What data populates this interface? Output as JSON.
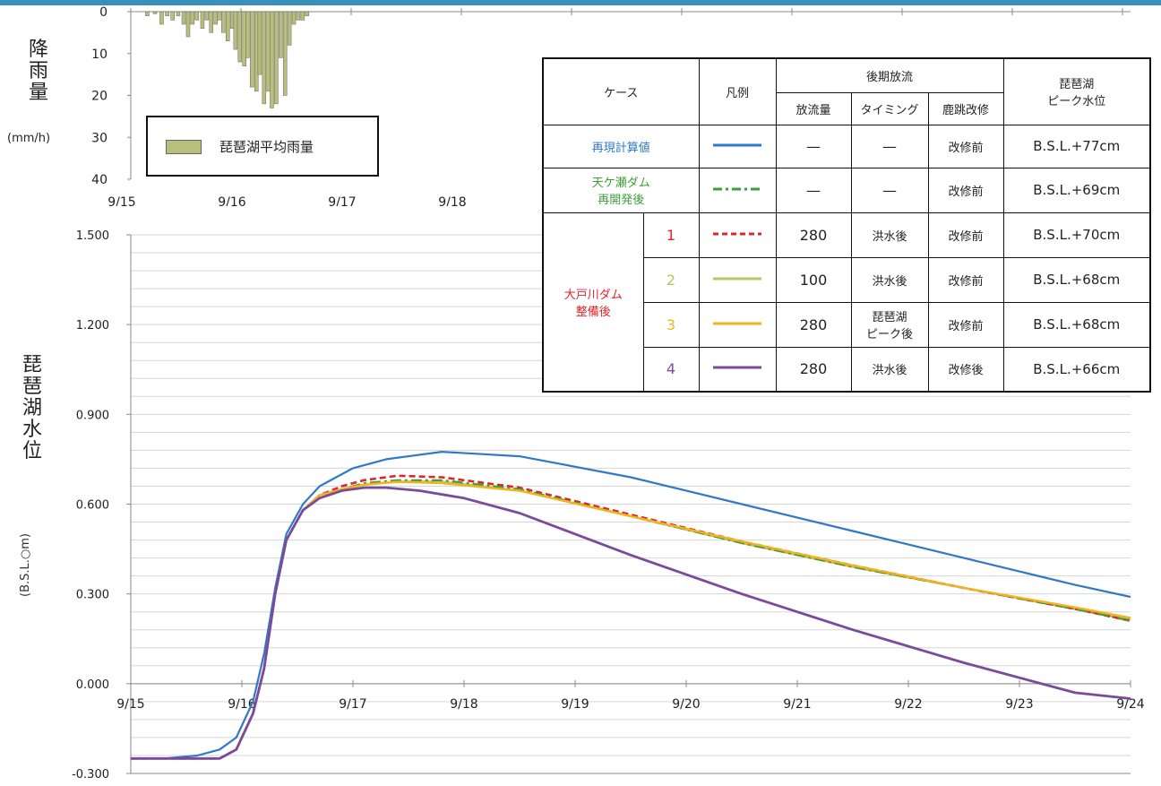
{
  "colors": {
    "recalc": "#2f79c8",
    "amagase": "#3f9d3a",
    "case1": "#e0242a",
    "case2": "#b9c463",
    "case3": "#f4b31a",
    "case4": "#7a4a9b",
    "rain": "#b9bf7a",
    "grid": "#d6d6d6",
    "accent_bar": "#3a8fb8"
  },
  "rain_chart": {
    "ylabel_chars": [
      "降",
      "雨",
      "量"
    ],
    "unit": "(mm/h)",
    "y_ticks": [
      "0",
      "10",
      "20",
      "30",
      "40"
    ],
    "x_ticks": [
      "9/15",
      "9/16",
      "9/17",
      "9/18"
    ],
    "legend_label": "琵琶湖平均雨量"
  },
  "level_chart": {
    "ylabel_chars": [
      "琵",
      "琶",
      "湖",
      "水",
      "位"
    ],
    "unit_rotated": "(B.S.L.○m)",
    "y_ticks": [
      "1.500",
      "1.200",
      "0.900",
      "0.600",
      "0.300",
      "0.000",
      "-0.300"
    ],
    "x_ticks": [
      "9/15",
      "9/16",
      "9/17",
      "9/18",
      "9/19",
      "9/20",
      "9/21",
      "9/22",
      "9/23",
      "9/24"
    ]
  },
  "legend_table": {
    "headers": {
      "case": "ケース",
      "legend": "凡例",
      "later_release": "後期放流",
      "peak": "琵琶湖\nピーク水位",
      "discharge": "放流量",
      "timing": "タイミング",
      "shishitobi": "鹿跳改修"
    },
    "group_label": "大戸川ダム\n整備後",
    "rows": [
      {
        "case": "再現計算値",
        "discharge": "—",
        "timing": "—",
        "shishitobi": "改修前",
        "peak": "B.S.L.+77cm"
      },
      {
        "case": "天ケ瀬ダム\n再開発後",
        "discharge": "—",
        "timing": "—",
        "shishitobi": "改修前",
        "peak": "B.S.L.+69cm"
      },
      {
        "case": "1",
        "discharge": "280",
        "timing": "洪水後",
        "shishitobi": "改修前",
        "peak": "B.S.L.+70cm"
      },
      {
        "case": "2",
        "discharge": "100",
        "timing": "洪水後",
        "shishitobi": "改修前",
        "peak": "B.S.L.+68cm"
      },
      {
        "case": "3",
        "discharge": "280",
        "timing": "琵琶湖\nピーク後",
        "shishitobi": "改修前",
        "peak": "B.S.L.+68cm"
      },
      {
        "case": "4",
        "discharge": "280",
        "timing": "洪水後",
        "shishitobi": "改修後",
        "peak": "B.S.L.+66cm"
      }
    ]
  },
  "chart_data": [
    {
      "type": "bar",
      "xlim": [
        0,
        4
      ],
      "ylim": [
        0,
        40
      ],
      "y_inverted": true,
      "x_ticks": [
        "9/15",
        "9/16",
        "9/17",
        "9/18"
      ],
      "series": [
        {
          "name": "琵琶湖平均雨量",
          "x": [
            0.15,
            0.22,
            0.28,
            0.33,
            0.38,
            0.43,
            0.48,
            0.52,
            0.56,
            0.6,
            0.65,
            0.69,
            0.73,
            0.77,
            0.8,
            0.84,
            0.88,
            0.92,
            0.95,
            0.99,
            1.03,
            1.06,
            1.1,
            1.14,
            1.17,
            1.21,
            1.25,
            1.28,
            1.32,
            1.36,
            1.4,
            1.44,
            1.48,
            1.52,
            1.56,
            1.6
          ],
          "values": [
            1,
            0.5,
            3,
            1,
            2,
            1,
            3,
            6,
            3,
            2,
            4,
            2,
            5,
            3,
            2,
            5,
            7,
            4,
            9,
            12,
            13,
            11,
            18,
            19,
            15,
            22,
            19,
            23,
            22,
            11,
            20,
            8,
            3,
            2,
            2,
            1
          ]
        }
      ]
    },
    {
      "type": "line",
      "x_ticks": [
        "9/15",
        "9/16",
        "9/17",
        "9/18",
        "9/19",
        "9/20",
        "9/21",
        "9/22",
        "9/23",
        "9/24"
      ],
      "xlim": [
        0,
        9
      ],
      "ylim": [
        -0.3,
        1.5
      ],
      "y_ticks": [
        -0.3,
        0.0,
        0.3,
        0.6,
        0.9,
        1.2,
        1.5
      ],
      "grid": true,
      "series": [
        {
          "name": "再現計算値",
          "color": "#2f79c8",
          "dash": "solid",
          "x": [
            0,
            0.3,
            0.6,
            0.8,
            0.95,
            1.1,
            1.2,
            1.3,
            1.4,
            1.55,
            1.7,
            1.9,
            2.0,
            2.3,
            2.8,
            3.5,
            4.5,
            5.5,
            6.5,
            7.5,
            8.5,
            9.0
          ],
          "y": [
            -0.25,
            -0.25,
            -0.24,
            -0.22,
            -0.18,
            -0.06,
            0.1,
            0.32,
            0.5,
            0.6,
            0.66,
            0.7,
            0.72,
            0.75,
            0.775,
            0.76,
            0.69,
            0.6,
            0.51,
            0.42,
            0.33,
            0.29
          ]
        },
        {
          "name": "天ケ瀬ダム再開発後",
          "color": "#3f9d3a",
          "dash": "dashdot",
          "x": [
            0,
            0.5,
            0.8,
            0.95,
            1.1,
            1.2,
            1.3,
            1.4,
            1.55,
            1.7,
            1.9,
            2.1,
            2.4,
            2.8,
            3.5,
            4.5,
            5.5,
            6.5,
            7.5,
            8.5,
            9.0
          ],
          "y": [
            -0.25,
            -0.25,
            -0.25,
            -0.22,
            -0.1,
            0.05,
            0.3,
            0.48,
            0.58,
            0.63,
            0.65,
            0.67,
            0.68,
            0.68,
            0.65,
            0.56,
            0.47,
            0.39,
            0.32,
            0.25,
            0.21
          ]
        },
        {
          "name": "1",
          "color": "#e0242a",
          "dash": "dashed",
          "x": [
            0,
            0.5,
            0.8,
            0.95,
            1.1,
            1.2,
            1.3,
            1.4,
            1.55,
            1.7,
            1.9,
            2.1,
            2.4,
            2.8,
            3.5,
            4.5,
            5.5,
            6.5,
            7.5,
            8.5,
            9.0
          ],
          "y": [
            -0.25,
            -0.25,
            -0.25,
            -0.22,
            -0.1,
            0.05,
            0.3,
            0.48,
            0.58,
            0.63,
            0.66,
            0.68,
            0.695,
            0.69,
            0.655,
            0.565,
            0.475,
            0.395,
            0.32,
            0.25,
            0.21
          ]
        },
        {
          "name": "2",
          "color": "#b9c463",
          "dash": "solid",
          "x": [
            0,
            0.5,
            0.8,
            0.95,
            1.1,
            1.2,
            1.3,
            1.4,
            1.55,
            1.7,
            1.9,
            2.1,
            2.4,
            2.8,
            3.5,
            4.5,
            5.5,
            6.5,
            7.5,
            8.5,
            9.0
          ],
          "y": [
            -0.25,
            -0.25,
            -0.25,
            -0.22,
            -0.1,
            0.05,
            0.3,
            0.48,
            0.58,
            0.63,
            0.65,
            0.665,
            0.675,
            0.675,
            0.645,
            0.56,
            0.47,
            0.39,
            0.32,
            0.25,
            0.215
          ]
        },
        {
          "name": "3",
          "color": "#f4b31a",
          "dash": "solid",
          "x": [
            0,
            0.5,
            0.8,
            0.95,
            1.1,
            1.2,
            1.3,
            1.4,
            1.55,
            1.7,
            1.9,
            2.1,
            2.4,
            2.8,
            3.5,
            4.5,
            5.5,
            6.5,
            7.5,
            8.5,
            9.0
          ],
          "y": [
            -0.25,
            -0.25,
            -0.25,
            -0.22,
            -0.1,
            0.05,
            0.3,
            0.48,
            0.58,
            0.63,
            0.65,
            0.665,
            0.675,
            0.67,
            0.645,
            0.56,
            0.475,
            0.395,
            0.32,
            0.255,
            0.22
          ]
        },
        {
          "name": "4",
          "color": "#7a4a9b",
          "dash": "solid",
          "x": [
            0,
            0.5,
            0.8,
            0.95,
            1.1,
            1.2,
            1.3,
            1.4,
            1.55,
            1.7,
            1.9,
            2.1,
            2.3,
            2.6,
            3.0,
            3.5,
            4.5,
            5.5,
            6.5,
            7.5,
            8.5,
            9.0
          ],
          "y": [
            -0.25,
            -0.25,
            -0.25,
            -0.22,
            -0.1,
            0.05,
            0.3,
            0.48,
            0.58,
            0.62,
            0.645,
            0.655,
            0.655,
            0.645,
            0.62,
            0.57,
            0.43,
            0.3,
            0.18,
            0.07,
            -0.03,
            -0.05
          ]
        }
      ]
    }
  ]
}
